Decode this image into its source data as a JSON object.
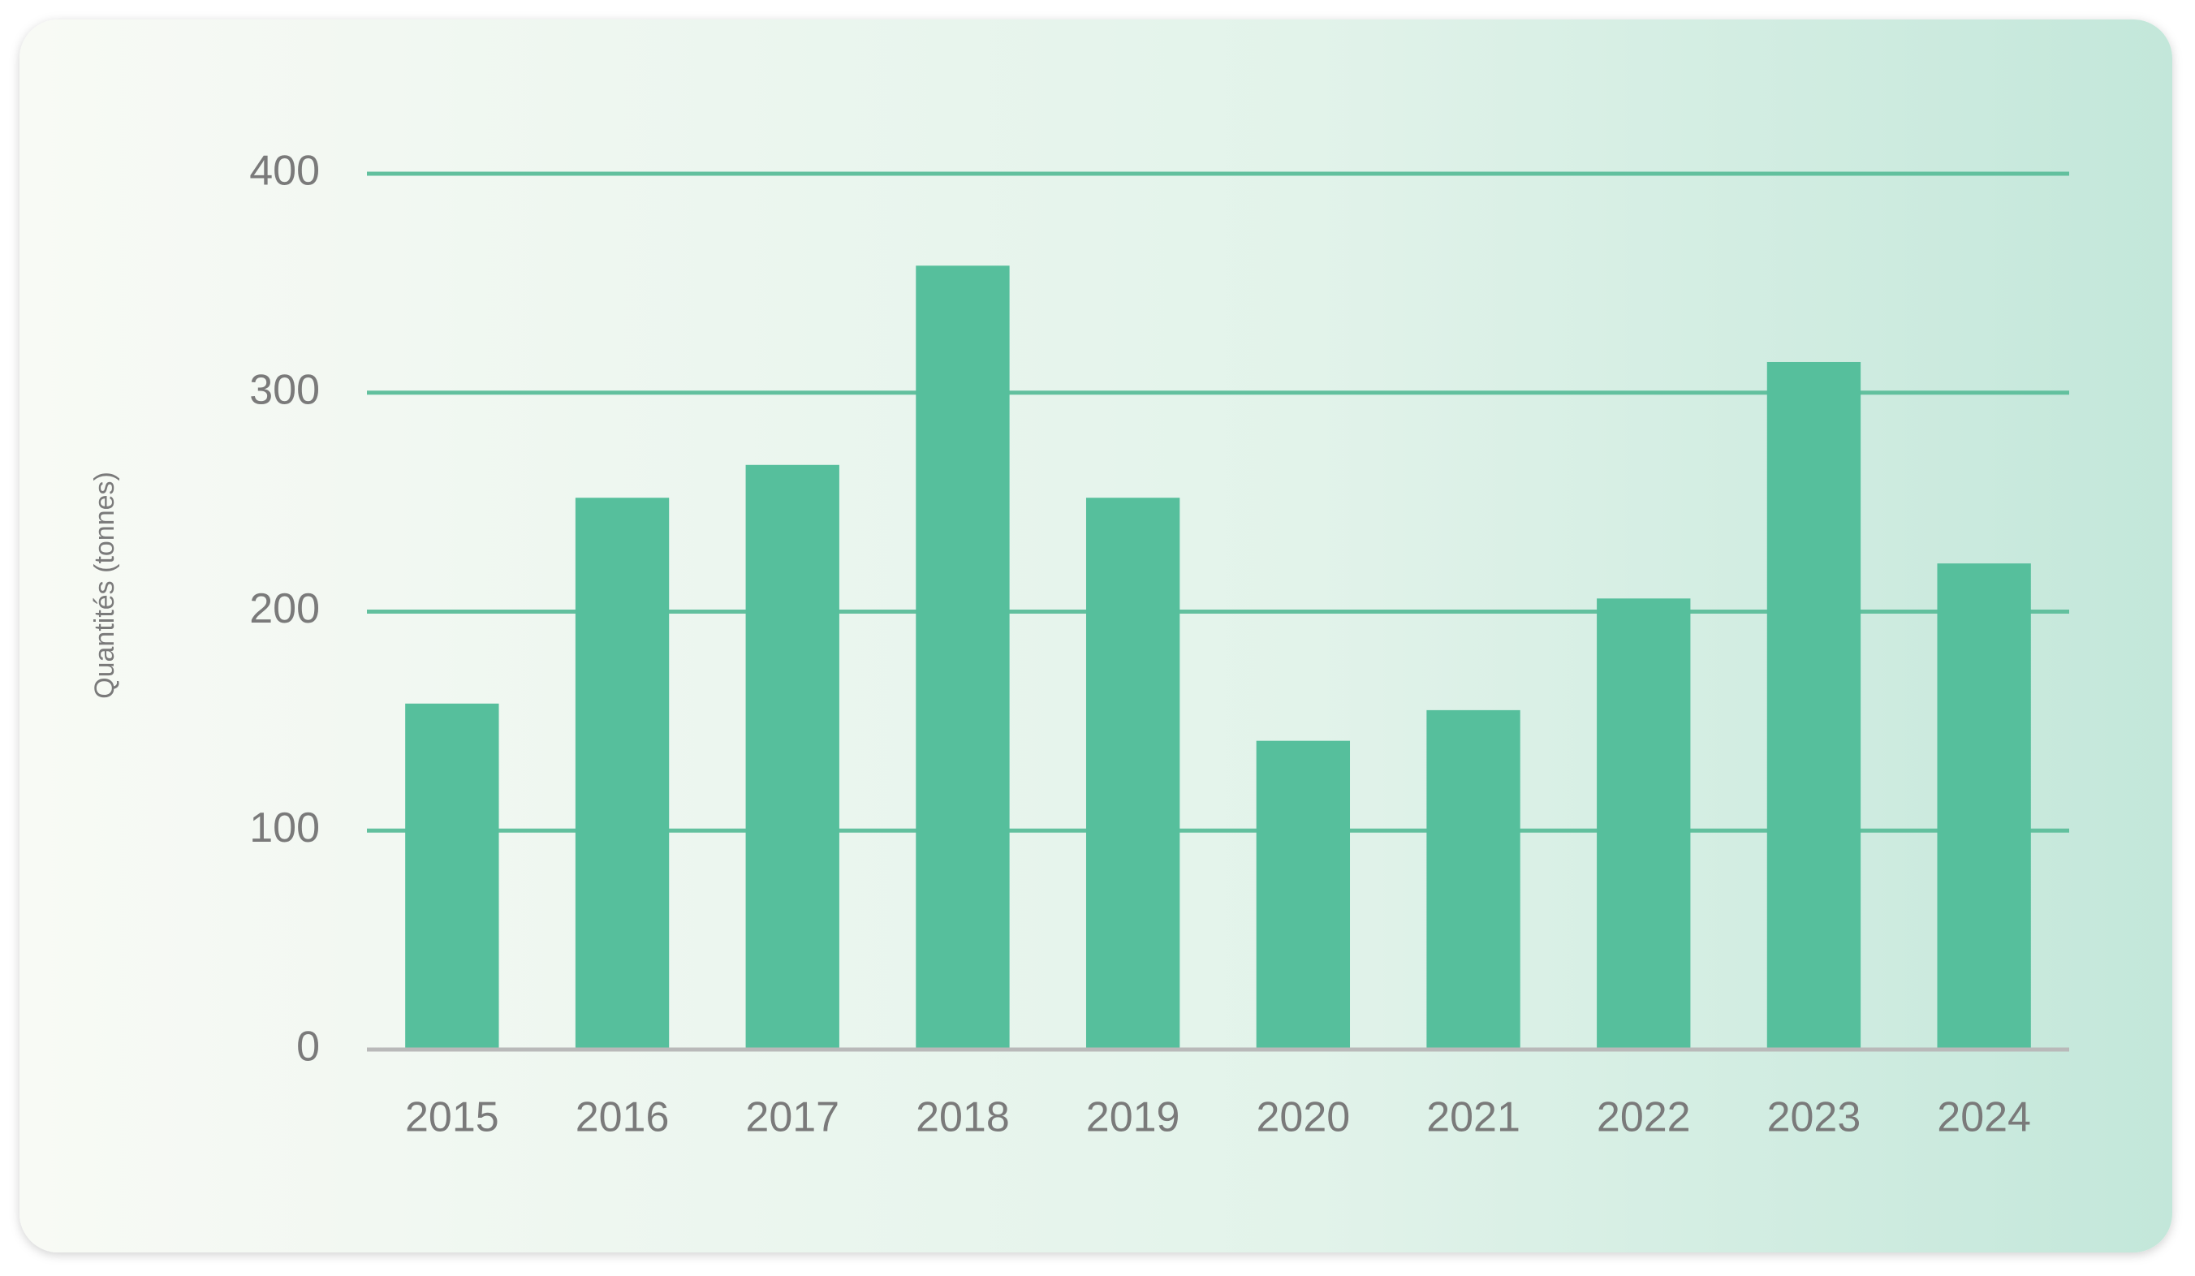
{
  "chart_data": {
    "type": "bar",
    "y_label": "Quantités (tonnes)",
    "categories": [
      "2015",
      "2016",
      "2017",
      "2018",
      "2019",
      "2020",
      "2021",
      "2022",
      "2023",
      "2024"
    ],
    "values": [
      158,
      252,
      267,
      358,
      252,
      141,
      155,
      206,
      314,
      222
    ],
    "color": "#56bf9c",
    "ylim": [
      0,
      400
    ],
    "yticks": [
      0,
      100,
      200,
      300,
      400
    ],
    "grid": true
  }
}
